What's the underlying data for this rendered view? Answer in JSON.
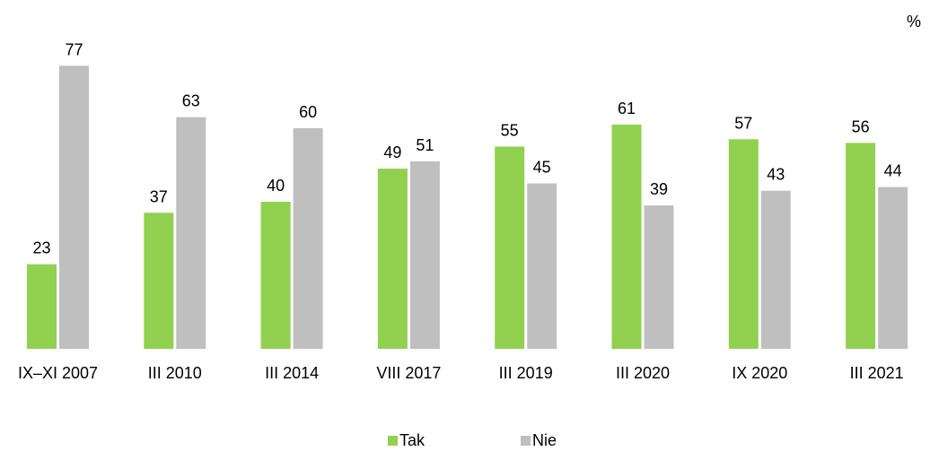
{
  "chart_data": {
    "type": "bar",
    "unit": "%",
    "categories": [
      "IX–XI 2007",
      "III 2010",
      "III 2014",
      "VIII 2017",
      "III 2019",
      "III 2020",
      "IX 2020",
      "III 2021"
    ],
    "series": [
      {
        "name": "Tak",
        "color": "#92d050",
        "values": [
          23,
          37,
          40,
          49,
          55,
          61,
          57,
          56
        ]
      },
      {
        "name": "Nie",
        "color": "#bfbfbf",
        "values": [
          77,
          63,
          60,
          51,
          45,
          39,
          43,
          44
        ]
      }
    ],
    "ylim": [
      0,
      100
    ],
    "grid": false,
    "legend_position": "bottom"
  }
}
